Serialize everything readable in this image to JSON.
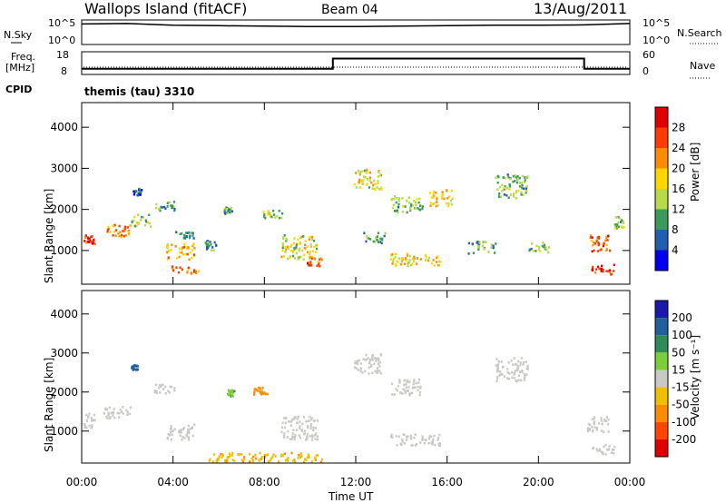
{
  "header": {
    "station": "Wallops Island (fitACF)",
    "beam": "Beam 04",
    "date": "13/Aug/2011"
  },
  "noise_panel": {
    "left_label": "N.Sky",
    "right_label": "N.Search",
    "left_ticks": [
      "10^5",
      "10^0"
    ],
    "right_ticks": [
      "10^5",
      "10^0"
    ]
  },
  "freq_panel": {
    "left_label_1": "Freq.",
    "left_label_2": "[MHz]",
    "right_label": "Nave",
    "left_ticks": [
      "18",
      "8"
    ],
    "right_ticks": [
      "60",
      "0"
    ]
  },
  "cpid": {
    "label": "CPID",
    "program": "themis (tau) 3310"
  },
  "power_panel": {
    "ylabel": "Slant Range [km]",
    "yticks": [
      "4000",
      "3000",
      "2000",
      "1000"
    ],
    "colorbar_label": "Power [dB]",
    "colorbar_ticks": [
      "28",
      "24",
      "20",
      "16",
      "12",
      "8",
      "4"
    ],
    "colorbar_colors": [
      "#e00000",
      "#ff3b00",
      "#ff8c00",
      "#ffd700",
      "#b7d94a",
      "#3c9b5a",
      "#1f5fae",
      "#0000ee"
    ]
  },
  "velocity_panel": {
    "ylabel": "Slant Range [km]",
    "yticks": [
      "4000",
      "3000",
      "2000",
      "1000"
    ],
    "colorbar_label": "Velocity [m s⁻¹]",
    "colorbar_ticks": [
      "200",
      "100",
      "50",
      "15",
      "-15",
      "-50",
      "-100",
      "-200"
    ],
    "colorbar_colors": [
      "#1a1aa8",
      "#215e9c",
      "#2e8b57",
      "#7ccd3a",
      "#c8c8c4",
      "#f0c000",
      "#ff8c00",
      "#ff4500",
      "#e00000"
    ]
  },
  "xaxis": {
    "ticks": [
      "00:00",
      "04:00",
      "08:00",
      "12:00",
      "16:00",
      "20:00",
      "00:00"
    ],
    "label": "Time UT"
  },
  "chart_data": [
    {
      "type": "line",
      "name": "noise",
      "x_unit": "hours UT",
      "x": [
        0,
        2,
        4,
        6,
        8,
        10,
        12,
        14,
        16,
        18,
        20,
        22,
        24
      ],
      "y_log10": [
        4.5,
        4.6,
        4.2,
        4.1,
        4.0,
        3.9,
        3.9,
        4.0,
        4.1,
        4.2,
        4.2,
        4.3,
        4.6
      ]
    },
    {
      "type": "line",
      "name": "frequency",
      "x_unit": "hours UT",
      "ylim": [
        8,
        18
      ],
      "steps": [
        {
          "start": 0,
          "end": 11,
          "value": 10.5
        },
        {
          "start": 11,
          "end": 22,
          "value": 15
        },
        {
          "start": 22,
          "end": 24,
          "value": 10.5
        }
      ]
    },
    {
      "type": "heatmap",
      "name": "power",
      "x_range_hours": [
        0,
        24
      ],
      "ylim_km": [
        180,
        4600
      ],
      "value_unit": "dB",
      "blobs": [
        {
          "t": 0.3,
          "r": 1300,
          "dt": 0.5,
          "dr": 120,
          "v": 28
        },
        {
          "t": 1.5,
          "r": 1500,
          "dt": 1.2,
          "dr": 150,
          "v": 22
        },
        {
          "t": 2.5,
          "r": 1750,
          "dt": 1.0,
          "dr": 150,
          "v": 14
        },
        {
          "t": 3.6,
          "r": 2100,
          "dt": 0.9,
          "dr": 120,
          "v": 10
        },
        {
          "t": 2.4,
          "r": 2450,
          "dt": 0.4,
          "dr": 80,
          "v": 6
        },
        {
          "t": 4.3,
          "r": 1000,
          "dt": 1.2,
          "dr": 200,
          "v": 20
        },
        {
          "t": 5.6,
          "r": 1150,
          "dt": 0.5,
          "dr": 120,
          "v": 10
        },
        {
          "t": 4.5,
          "r": 550,
          "dt": 1.2,
          "dr": 90,
          "v": 22
        },
        {
          "t": 4.5,
          "r": 1400,
          "dt": 0.8,
          "dr": 90,
          "v": 9
        },
        {
          "t": 6.4,
          "r": 2000,
          "dt": 0.4,
          "dr": 90,
          "v": 9
        },
        {
          "t": 8.3,
          "r": 1900,
          "dt": 0.9,
          "dr": 100,
          "v": 14
        },
        {
          "t": 9.5,
          "r": 1100,
          "dt": 1.6,
          "dr": 300,
          "v": 16
        },
        {
          "t": 10.2,
          "r": 750,
          "dt": 0.7,
          "dr": 120,
          "v": 24
        },
        {
          "t": 12.5,
          "r": 2750,
          "dt": 1.2,
          "dr": 250,
          "v": 16
        },
        {
          "t": 14.2,
          "r": 2150,
          "dt": 1.4,
          "dr": 200,
          "v": 12
        },
        {
          "t": 15.7,
          "r": 2300,
          "dt": 1.0,
          "dr": 200,
          "v": 18
        },
        {
          "t": 12.8,
          "r": 1350,
          "dt": 1.0,
          "dr": 150,
          "v": 11
        },
        {
          "t": 14.6,
          "r": 800,
          "dt": 2.2,
          "dr": 150,
          "v": 18
        },
        {
          "t": 17.5,
          "r": 1100,
          "dt": 1.2,
          "dr": 150,
          "v": 10
        },
        {
          "t": 18.8,
          "r": 2600,
          "dt": 1.4,
          "dr": 300,
          "v": 12
        },
        {
          "t": 20.0,
          "r": 1100,
          "dt": 0.9,
          "dr": 120,
          "v": 12
        },
        {
          "t": 22.6,
          "r": 1200,
          "dt": 1.0,
          "dr": 200,
          "v": 24
        },
        {
          "t": 22.8,
          "r": 550,
          "dt": 1.0,
          "dr": 130,
          "v": 28
        },
        {
          "t": 23.5,
          "r": 1700,
          "dt": 0.5,
          "dr": 150,
          "v": 12
        }
      ]
    },
    {
      "type": "heatmap",
      "name": "velocity",
      "x_range_hours": [
        0,
        24
      ],
      "ylim_km": [
        180,
        4600
      ],
      "value_unit": "m s-1",
      "blobs": [
        {
          "t": 0.3,
          "r": 1300,
          "dt": 0.5,
          "dr": 200,
          "v": 0
        },
        {
          "t": 1.5,
          "r": 1500,
          "dt": 1.2,
          "dr": 150,
          "v": 0
        },
        {
          "t": 3.6,
          "r": 2100,
          "dt": 0.9,
          "dr": 120,
          "v": 0
        },
        {
          "t": 4.3,
          "r": 1000,
          "dt": 1.2,
          "dr": 200,
          "v": 0
        },
        {
          "t": 9.5,
          "r": 1100,
          "dt": 1.6,
          "dr": 300,
          "v": 0
        },
        {
          "t": 12.5,
          "r": 2750,
          "dt": 1.2,
          "dr": 250,
          "v": 0
        },
        {
          "t": 14.2,
          "r": 2150,
          "dt": 1.4,
          "dr": 200,
          "v": 0
        },
        {
          "t": 14.6,
          "r": 800,
          "dt": 2.2,
          "dr": 150,
          "v": 0
        },
        {
          "t": 18.8,
          "r": 2600,
          "dt": 1.4,
          "dr": 300,
          "v": 0
        },
        {
          "t": 22.6,
          "r": 1200,
          "dt": 1.0,
          "dr": 200,
          "v": 0
        },
        {
          "t": 22.8,
          "r": 550,
          "dt": 1.0,
          "dr": 130,
          "v": 0
        },
        {
          "t": 7.8,
          "r": 2050,
          "dt": 0.7,
          "dr": 90,
          "v": -70
        },
        {
          "t": 6.5,
          "r": 2000,
          "dt": 0.3,
          "dr": 80,
          "v": 40
        },
        {
          "t": 8.0,
          "r": 350,
          "dt": 5.0,
          "dr": 120,
          "v": -40
        },
        {
          "t": 2.3,
          "r": 2650,
          "dt": 0.3,
          "dr": 60,
          "v": 150
        }
      ]
    }
  ]
}
